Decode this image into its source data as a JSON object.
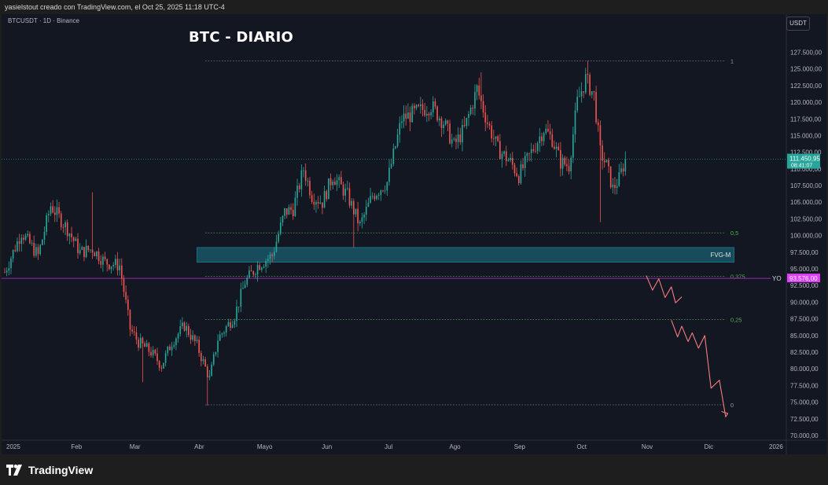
{
  "attribution": "yasielstout creado con TradingView.com, el Oct 25, 2025 11:18 UTC-4",
  "symbol_info": "BTCUSDT · 1D · Binance",
  "currency": "USDT",
  "logo_text": "TradingView",
  "colors": {
    "up": "#26a69a",
    "down": "#ef5350",
    "background": "#131722",
    "fib": "#4caf50",
    "projection": "#f77c80",
    "fvg": "#1b5e70",
    "yo_line": "#9c27b0",
    "price_tag": "#26a69a",
    "yo_tag": "#e040fb"
  },
  "chart_data": {
    "type": "candlestick",
    "title": "BTC - DIARIO",
    "ylim": [
      70000,
      128500
    ],
    "y_ticks": [
      "127.500,00",
      "125.000,00",
      "122.500,00",
      "120.000,00",
      "117.500,00",
      "115.000,00",
      "112.500,00",
      "110.000,00",
      "107.500,00",
      "105.000,00",
      "102.500,00",
      "100.000,00",
      "97.500,00",
      "95.000,00",
      "92.500,00",
      "90.000,00",
      "87.500,00",
      "85.000,00",
      "82.500,00",
      "80.000,00",
      "77.500,00",
      "75.000,00",
      "72.500,00",
      "70.000,00"
    ],
    "x_labels": [
      {
        "label": "2025",
        "day": 0
      },
      {
        "label": "Feb",
        "day": 31
      },
      {
        "label": "Mar",
        "day": 59
      },
      {
        "label": "Abr",
        "day": 90
      },
      {
        "label": "Mayo",
        "day": 120
      },
      {
        "label": "Jun",
        "day": 151
      },
      {
        "label": "Jul",
        "day": 181
      },
      {
        "label": "Ago",
        "day": 212
      },
      {
        "label": "Sep",
        "day": 243
      },
      {
        "label": "Oct",
        "day": 273
      },
      {
        "label": "Nov",
        "day": 304
      },
      {
        "label": "Dic",
        "day": 334
      },
      {
        "label": "2026",
        "day": 365
      }
    ],
    "current_price": {
      "value": 111450.95,
      "label": "111.450,95",
      "countdown": "08:41:07"
    },
    "yo_level": {
      "value": 93576,
      "label": "93.576,00",
      "tag": "YO"
    },
    "fib_levels": [
      {
        "label": "1",
        "value": 126200
      },
      {
        "label": "0,5",
        "value": 100400
      },
      {
        "label": "0,375",
        "value": 93900
      },
      {
        "label": "0,25",
        "value": 87400
      },
      {
        "label": "0",
        "value": 74600
      }
    ],
    "fib_start_day": 96,
    "fib_end_day": 345,
    "fvg": {
      "label": "FVG-M",
      "low": 96000,
      "high": 98200,
      "start_day": 92,
      "end_day": 349
    },
    "projection_path": [
      {
        "day": 307,
        "price": 94000
      },
      {
        "day": 310,
        "price": 91800
      },
      {
        "day": 313,
        "price": 93500
      },
      {
        "day": 316,
        "price": 90700
      },
      {
        "day": 319,
        "price": 92300
      },
      {
        "day": 321,
        "price": 89900
      },
      {
        "day": 324,
        "price": 90800
      },
      {
        "day": 319,
        "price": 87300
      },
      {
        "day": 322,
        "price": 84800
      },
      {
        "day": 324,
        "price": 86400
      },
      {
        "day": 327,
        "price": 84100
      },
      {
        "day": 329,
        "price": 85400
      },
      {
        "day": 332,
        "price": 83100
      },
      {
        "day": 335,
        "price": 85000
      },
      {
        "day": 338,
        "price": 77100
      },
      {
        "day": 342,
        "price": 78300
      },
      {
        "day": 345,
        "price": 72800
      },
      {
        "day": 346,
        "price": 73300
      },
      {
        "day": 343,
        "price": 73600
      }
    ],
    "path_anchors": [
      {
        "day": 0,
        "price": 94500
      },
      {
        "day": 8,
        "price": 100500
      },
      {
        "day": 16,
        "price": 97000
      },
      {
        "day": 22,
        "price": 104500
      },
      {
        "day": 30,
        "price": 101000
      },
      {
        "day": 36,
        "price": 97500
      },
      {
        "day": 42,
        "price": 98000
      },
      {
        "day": 48,
        "price": 96000
      },
      {
        "day": 55,
        "price": 95500
      },
      {
        "day": 60,
        "price": 86000
      },
      {
        "day": 64,
        "price": 84000
      },
      {
        "day": 70,
        "price": 82500
      },
      {
        "day": 75,
        "price": 80500
      },
      {
        "day": 80,
        "price": 84000
      },
      {
        "day": 86,
        "price": 86500
      },
      {
        "day": 92,
        "price": 83500
      },
      {
        "day": 98,
        "price": 78500
      },
      {
        "day": 102,
        "price": 84500
      },
      {
        "day": 110,
        "price": 88000
      },
      {
        "day": 115,
        "price": 93000
      },
      {
        "day": 121,
        "price": 95500
      },
      {
        "day": 128,
        "price": 97000
      },
      {
        "day": 134,
        "price": 103500
      },
      {
        "day": 138,
        "price": 104000
      },
      {
        "day": 143,
        "price": 110000
      },
      {
        "day": 147,
        "price": 106000
      },
      {
        "day": 152,
        "price": 105000
      },
      {
        "day": 157,
        "price": 109000
      },
      {
        "day": 164,
        "price": 106000
      },
      {
        "day": 170,
        "price": 101500
      },
      {
        "day": 176,
        "price": 106000
      },
      {
        "day": 183,
        "price": 108000
      },
      {
        "day": 190,
        "price": 117500
      },
      {
        "day": 197,
        "price": 118500
      },
      {
        "day": 204,
        "price": 119500
      },
      {
        "day": 210,
        "price": 117000
      },
      {
        "day": 215,
        "price": 113500
      },
      {
        "day": 220,
        "price": 116000
      },
      {
        "day": 226,
        "price": 122000
      },
      {
        "day": 231,
        "price": 117000
      },
      {
        "day": 236,
        "price": 113000
      },
      {
        "day": 242,
        "price": 111000
      },
      {
        "day": 246,
        "price": 109000
      },
      {
        "day": 252,
        "price": 112500
      },
      {
        "day": 258,
        "price": 116000
      },
      {
        "day": 262,
        "price": 114500
      },
      {
        "day": 266,
        "price": 111000
      },
      {
        "day": 270,
        "price": 110500
      },
      {
        "day": 274,
        "price": 120000
      },
      {
        "day": 278,
        "price": 123500
      },
      {
        "day": 282,
        "price": 121000
      },
      {
        "day": 285,
        "price": 112500
      },
      {
        "day": 288,
        "price": 110500
      },
      {
        "day": 291,
        "price": 107000
      },
      {
        "day": 294,
        "price": 108500
      },
      {
        "day": 297,
        "price": 111450
      }
    ],
    "key_extremes": [
      {
        "day": 42,
        "high": 106500
      },
      {
        "day": 66,
        "low": 78000
      },
      {
        "day": 97,
        "low": 74500
      },
      {
        "day": 167,
        "low": 98200
      },
      {
        "day": 228,
        "high": 124500
      },
      {
        "day": 279,
        "high": 126200
      },
      {
        "day": 285,
        "low": 102000
      }
    ]
  }
}
